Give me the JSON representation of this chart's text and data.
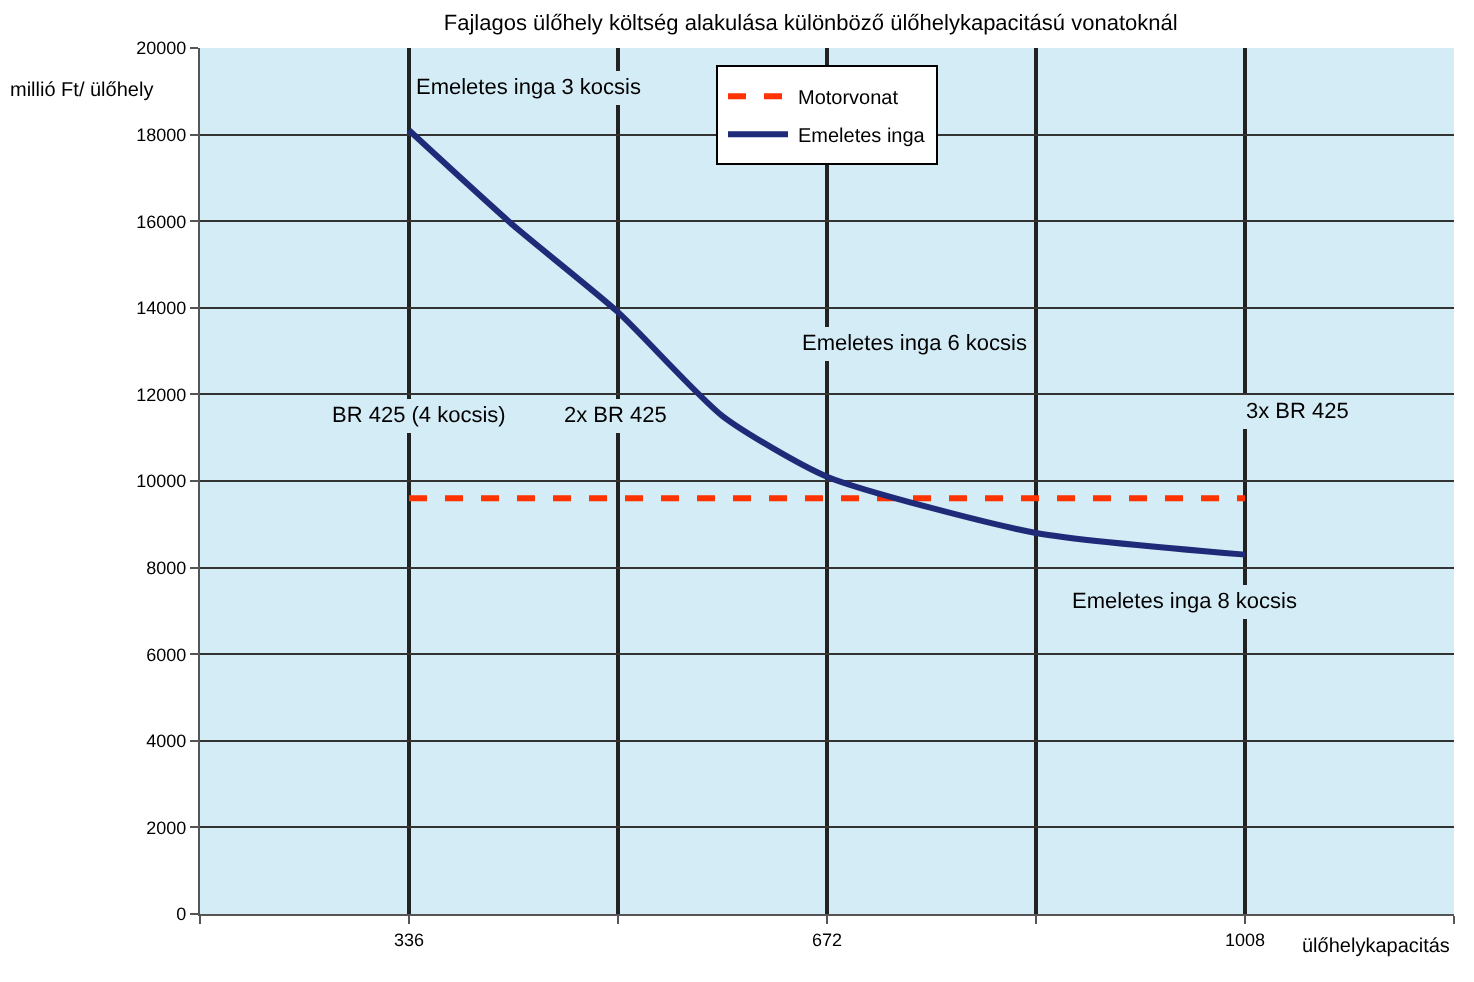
{
  "chart_data": {
    "type": "line",
    "title": "Fajlagos ülőhely költség alakulása különböző ülőhelykapacitású vonatoknál",
    "xlabel": "ülőhelykapacitás",
    "ylabel": "millió Ft/ ülőhely",
    "series": [
      {
        "name": "Motorvonat",
        "color": "#ff3300",
        "line_style": "dashed",
        "x": [
          336,
          1008
        ],
        "values": [
          9600,
          9600
        ]
      },
      {
        "name": "Emeletes inga",
        "color": "#1f2a78",
        "line_style": "solid",
        "x": [
          336,
          420,
          504,
          588,
          672,
          840,
          1008
        ],
        "values": [
          18100,
          15900,
          13900,
          11500,
          10100,
          8800,
          8300
        ]
      }
    ],
    "xlim": [
      168,
      1176
    ],
    "xticks": [
      {
        "value": 168,
        "label": null
      },
      336,
      {
        "value": 504,
        "label": null
      },
      672,
      {
        "value": 840,
        "label": null
      },
      1008,
      {
        "value": 1176,
        "label": null
      }
    ],
    "ylim": [
      0,
      20000
    ],
    "yticks": [
      0,
      2000,
      4000,
      6000,
      8000,
      10000,
      12000,
      14000,
      16000,
      18000,
      20000
    ],
    "grid": true,
    "legend": "top",
    "marker": "none",
    "annotations": [
      "Emeletes inga 3 kocsis",
      "Emeletes inga 6 kocsis",
      "Emeletes inga 8 kocsis",
      "BR 425 (4 kocsis)",
      "2x BR 425",
      "3x BR 425"
    ]
  }
}
